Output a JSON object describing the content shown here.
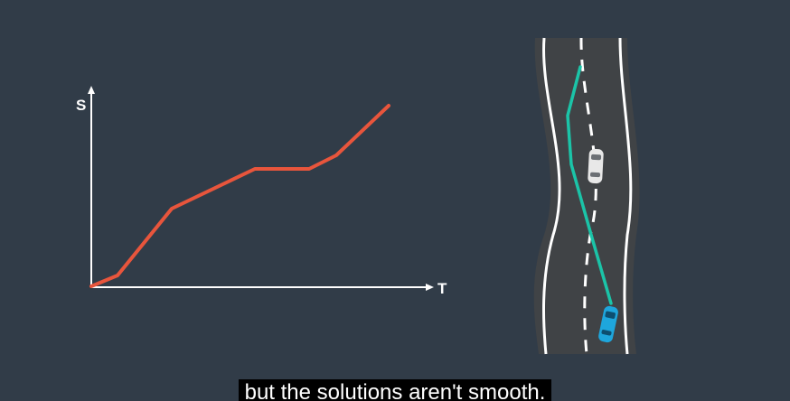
{
  "diagram": {
    "y_axis_label": "S",
    "x_axis_label": "T",
    "path_color": "#e8553c",
    "trajectory_color": "#1bc4a8",
    "road_color": "#404346",
    "ego_car_color": "#1ea6dc",
    "other_car_color": "#e8e8e8"
  },
  "caption": {
    "text": "but the solutions aren't smooth."
  }
}
